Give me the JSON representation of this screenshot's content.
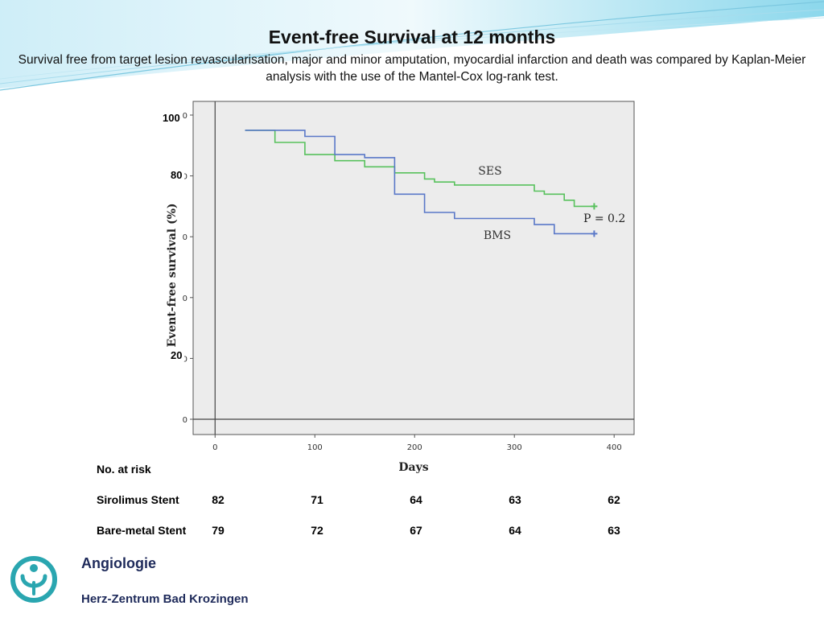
{
  "slide": {
    "title": "Event-free Survival at 12 months",
    "subtitle": "Survival free from target lesion revascularisation, major and minor amputation, myocardial infarction and death was compared by Kaplan-Meier analysis with the use of the Mantel-Cox log-rank test."
  },
  "chart_data": {
    "type": "line",
    "title": "",
    "xlabel": "Days",
    "ylabel": "Event-free survival (%)",
    "xlim": [
      -22,
      420
    ],
    "ylim": [
      0,
      100
    ],
    "x_ticks": [
      "0",
      "100",
      "200",
      "300",
      "400"
    ],
    "y_tick_values": [
      0,
      20,
      40,
      60,
      80,
      100
    ],
    "y_tick_labels_printed": [
      "0",
      "0",
      "0",
      "0",
      "0",
      "0"
    ],
    "overlay_y_labels": [
      "100",
      "80",
      "20"
    ],
    "annotation": "P = 0.2",
    "grid": false,
    "series": [
      {
        "name": "SES",
        "color": "#58c15d",
        "x": [
          30,
          60,
          60,
          90,
          90,
          120,
          120,
          150,
          150,
          180,
          180,
          210,
          210,
          220,
          220,
          240,
          240,
          320,
          320,
          330,
          330,
          350,
          350,
          360,
          360,
          380
        ],
        "y": [
          95,
          95,
          91,
          91,
          87,
          87,
          85,
          85,
          83,
          83,
          81,
          81,
          79,
          79,
          78,
          78,
          77,
          77,
          75,
          75,
          74,
          74,
          72,
          72,
          70,
          70
        ]
      },
      {
        "name": "BMS",
        "color": "#5a78c8",
        "x": [
          30,
          90,
          90,
          120,
          120,
          150,
          150,
          180,
          180,
          210,
          210,
          240,
          240,
          320,
          320,
          340,
          340,
          380
        ],
        "y": [
          95,
          95,
          93,
          93,
          87,
          87,
          86,
          86,
          74,
          74,
          68,
          68,
          66,
          66,
          64,
          64,
          61,
          61
        ]
      }
    ]
  },
  "risk_table": {
    "header": "No. at risk",
    "rows": [
      {
        "label": "Sirolimus Stent",
        "values": [
          "82",
          "71",
          "64",
          "63",
          "62"
        ]
      },
      {
        "label": "Bare-metal Stent",
        "values": [
          "79",
          "72",
          "67",
          "64",
          "63"
        ]
      }
    ]
  },
  "footer": {
    "department": "Angiologie",
    "institution": "Herz-Zentrum Bad Krozingen"
  },
  "colors": {
    "ses": "#58c15d",
    "bms": "#5a78c8",
    "plot_bg": "#ececec",
    "accent": "#2aa6b0"
  }
}
